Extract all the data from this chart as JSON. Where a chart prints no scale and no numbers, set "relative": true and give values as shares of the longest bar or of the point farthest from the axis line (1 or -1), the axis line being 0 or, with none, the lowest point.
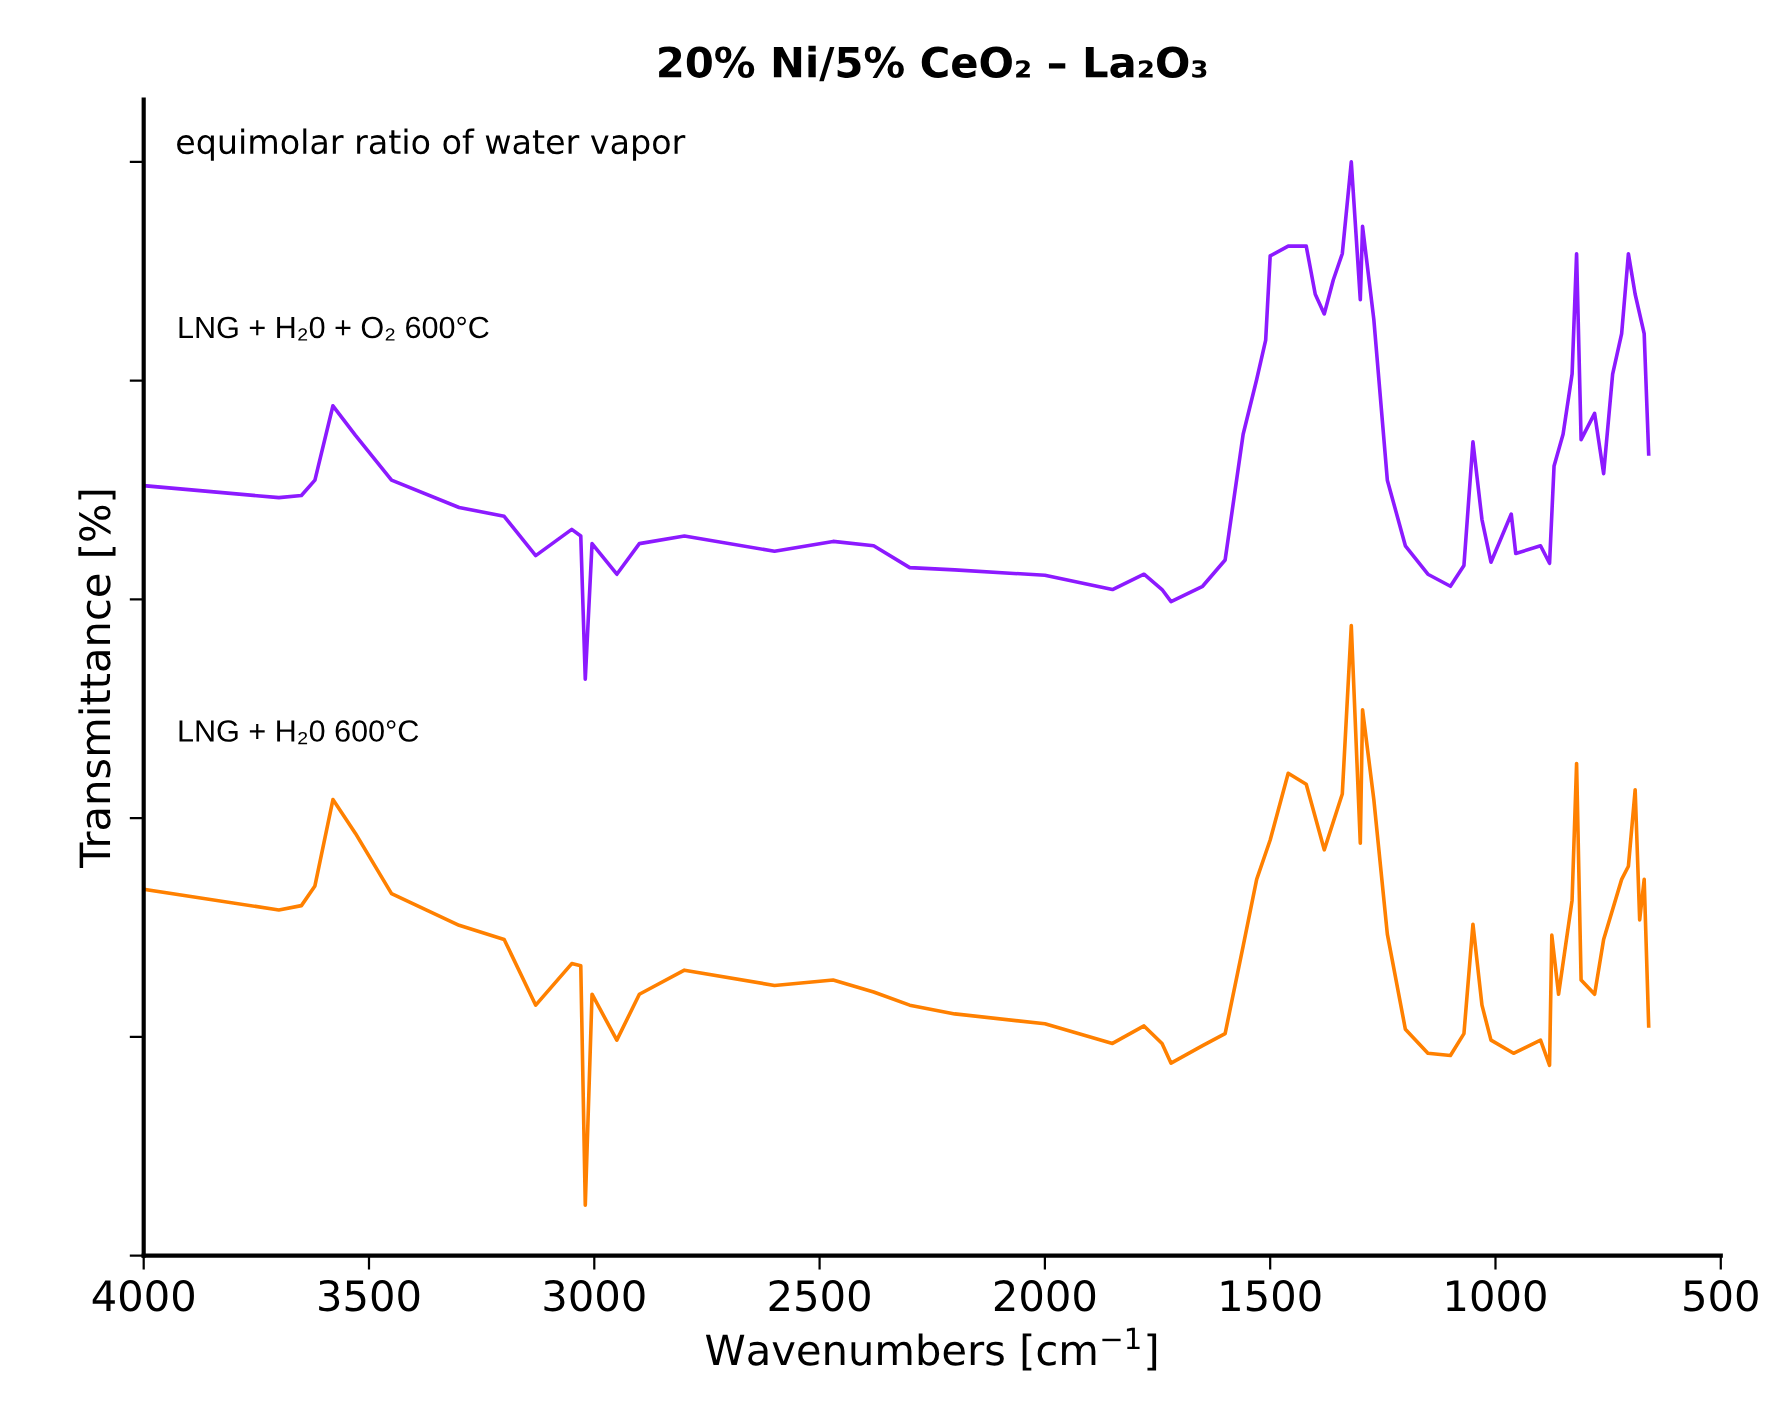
{
  "chart_data": {
    "type": "line",
    "title": "20% Ni/5% CeO₂ – La₂O₃",
    "xlabel": "Wavenumbers [cm$^{−1}$]",
    "ylabel": "Transmittance [%]",
    "annotations": [
      "equimolar ratio of water vapor"
    ],
    "relative": true,
    "tick_labels": "x",
    "xlim": [
      4000,
      500
    ],
    "xticks": [
      4000,
      3500,
      3000,
      2500,
      2000,
      1500,
      1000,
      500
    ],
    "grid": false,
    "legend": false,
    "marker": "none",
    "line_style": "solid",
    "series": [
      {
        "name": "LNG + H₂0 + O₂ 600°C",
        "color": "#8c1aff",
        "x": [
          4000,
          3700,
          3650,
          3620,
          3580,
          3530,
          3450,
          3300,
          3200,
          3130,
          3050,
          3030,
          3020,
          3005,
          2950,
          2900,
          2800,
          2600,
          2470,
          2380,
          2300,
          2200,
          2000,
          1850,
          1780,
          1740,
          1720,
          1650,
          1600,
          1560,
          1530,
          1510,
          1500,
          1460,
          1420,
          1400,
          1380,
          1360,
          1340,
          1320,
          1300,
          1295,
          1270,
          1240,
          1200,
          1150,
          1100,
          1070,
          1050,
          1030,
          1010,
          965,
          955,
          900,
          880,
          870,
          850,
          830,
          820,
          810,
          780,
          760,
          740,
          720,
          705,
          690,
          670,
          660
        ],
        "values": [
          0.704,
          0.693,
          0.695,
          0.709,
          0.777,
          0.75,
          0.709,
          0.684,
          0.676,
          0.64,
          0.664,
          0.658,
          0.527,
          0.651,
          0.623,
          0.651,
          0.658,
          0.644,
          0.653,
          0.649,
          0.629,
          0.627,
          0.622,
          0.609,
          0.623,
          0.609,
          0.598,
          0.612,
          0.636,
          0.751,
          0.801,
          0.837,
          0.914,
          0.923,
          0.923,
          0.879,
          0.861,
          0.892,
          0.916,
          1.0,
          0.874,
          0.941,
          0.856,
          0.709,
          0.649,
          0.623,
          0.612,
          0.631,
          0.744,
          0.673,
          0.634,
          0.678,
          0.642,
          0.649,
          0.633,
          0.722,
          0.751,
          0.806,
          0.916,
          0.746,
          0.77,
          0.715,
          0.806,
          0.843,
          0.916,
          0.879,
          0.843,
          0.733
        ]
      },
      {
        "name": "LNG + H₂0 600°C",
        "color": "#ff8000",
        "x": [
          4000,
          3700,
          3650,
          3620,
          3580,
          3530,
          3450,
          3300,
          3200,
          3130,
          3050,
          3030,
          3020,
          3005,
          2950,
          2900,
          2800,
          2600,
          2470,
          2380,
          2300,
          2200,
          2000,
          1850,
          1780,
          1740,
          1720,
          1650,
          1600,
          1560,
          1530,
          1500,
          1460,
          1420,
          1380,
          1340,
          1320,
          1300,
          1295,
          1270,
          1240,
          1200,
          1150,
          1100,
          1070,
          1050,
          1030,
          1010,
          960,
          900,
          880,
          875,
          860,
          830,
          820,
          810,
          780,
          760,
          720,
          705,
          690,
          680,
          670,
          660
        ],
        "values": [
          0.335,
          0.316,
          0.32,
          0.338,
          0.417,
          0.386,
          0.331,
          0.302,
          0.289,
          0.229,
          0.267,
          0.265,
          0.046,
          0.239,
          0.197,
          0.239,
          0.261,
          0.247,
          0.252,
          0.241,
          0.229,
          0.221,
          0.212,
          0.194,
          0.21,
          0.194,
          0.176,
          0.192,
          0.203,
          0.283,
          0.344,
          0.38,
          0.441,
          0.431,
          0.371,
          0.422,
          0.576,
          0.377,
          0.499,
          0.417,
          0.294,
          0.207,
          0.185,
          0.183,
          0.203,
          0.303,
          0.229,
          0.197,
          0.185,
          0.197,
          0.174,
          0.293,
          0.239,
          0.325,
          0.45,
          0.252,
          0.239,
          0.289,
          0.344,
          0.356,
          0.426,
          0.307,
          0.344,
          0.21
        ]
      }
    ]
  }
}
